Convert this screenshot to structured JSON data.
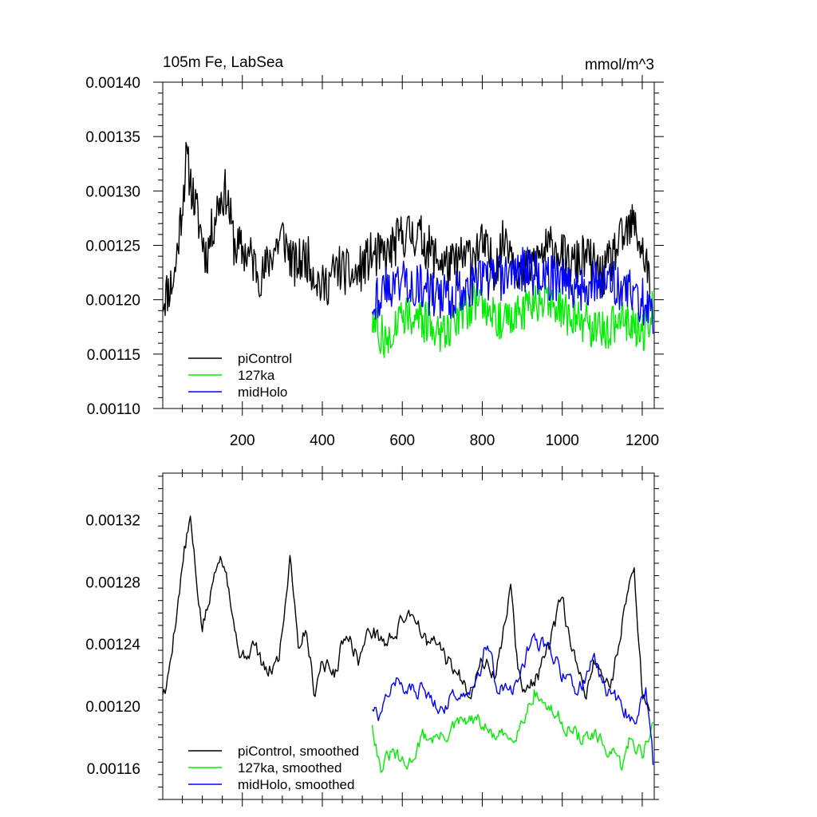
{
  "chart_data": [
    {
      "type": "line",
      "title": "105m Fe, LabSea",
      "units": "mmol/m^3",
      "xlim": [
        1,
        1230
      ],
      "ylim": [
        0.0011,
        0.0014
      ],
      "xticks": [
        200,
        400,
        600,
        800,
        1000,
        1200
      ],
      "xtick_labels": [
        "200",
        "400",
        "600",
        "800",
        "1000",
        "1200"
      ],
      "yticks": [
        0.0011,
        0.00115,
        0.0012,
        0.00125,
        0.0013,
        0.00135,
        0.0014
      ],
      "ytick_labels": [
        "0.00110",
        "0.00115",
        "0.00120",
        "0.00125",
        "0.00130",
        "0.00135",
        "0.00140"
      ],
      "legend": [
        "piControl",
        "127ka",
        "midHolo"
      ],
      "legend_position": "bottom-left",
      "series": [
        {
          "name": "piControl",
          "color": "#000000",
          "x_range": [
            1,
            1220
          ],
          "anchors": [
            [
              1,
              0.0012
            ],
            [
              30,
              0.00122
            ],
            [
              50,
              0.00129
            ],
            [
              60,
              0.00133
            ],
            [
              80,
              0.00129
            ],
            [
              110,
              0.00124
            ],
            [
              140,
              0.00129
            ],
            [
              160,
              0.0013
            ],
            [
              180,
              0.00125
            ],
            [
              220,
              0.00124
            ],
            [
              250,
              0.00122
            ],
            [
              270,
              0.00124
            ],
            [
              300,
              0.00126
            ],
            [
              330,
              0.00123
            ],
            [
              360,
              0.00124
            ],
            [
              400,
              0.00121
            ],
            [
              440,
              0.00123
            ],
            [
              480,
              0.00122
            ],
            [
              520,
              0.00124
            ],
            [
              560,
              0.00124
            ],
            [
              600,
              0.00126
            ],
            [
              640,
              0.00126
            ],
            [
              680,
              0.00124
            ],
            [
              720,
              0.00123
            ],
            [
              760,
              0.00124
            ],
            [
              800,
              0.00125
            ],
            [
              830,
              0.00123
            ],
            [
              860,
              0.00126
            ],
            [
              900,
              0.00122
            ],
            [
              940,
              0.00124
            ],
            [
              980,
              0.00125
            ],
            [
              1020,
              0.00123
            ],
            [
              1060,
              0.00124
            ],
            [
              1100,
              0.00122
            ],
            [
              1140,
              0.00125
            ],
            [
              1180,
              0.00127
            ],
            [
              1220,
              0.00122
            ]
          ],
          "noise": 2.2e-05,
          "seed": 11
        },
        {
          "name": "127ka",
          "color": "#00ee00",
          "x_range": [
            525,
            1228
          ],
          "anchors": [
            [
              525,
              0.00118
            ],
            [
              560,
              0.00116
            ],
            [
              600,
              0.00119
            ],
            [
              650,
              0.00118
            ],
            [
              700,
              0.00117
            ],
            [
              750,
              0.00119
            ],
            [
              800,
              0.0012
            ],
            [
              850,
              0.00118
            ],
            [
              900,
              0.00119
            ],
            [
              950,
              0.0012
            ],
            [
              1000,
              0.00119
            ],
            [
              1050,
              0.00118
            ],
            [
              1100,
              0.00117
            ],
            [
              1150,
              0.00118
            ],
            [
              1200,
              0.00117
            ],
            [
              1228,
              0.00119
            ]
          ],
          "noise": 2e-05,
          "seed": 27
        },
        {
          "name": "midHolo",
          "color": "#0000ff",
          "x_range": [
            525,
            1228
          ],
          "anchors": [
            [
              525,
              0.0012
            ],
            [
              560,
              0.00121
            ],
            [
              600,
              0.00122
            ],
            [
              650,
              0.00121
            ],
            [
              700,
              0.0012
            ],
            [
              750,
              0.00121
            ],
            [
              800,
              0.00122
            ],
            [
              850,
              0.00122
            ],
            [
              900,
              0.00123
            ],
            [
              950,
              0.00122
            ],
            [
              1000,
              0.00122
            ],
            [
              1050,
              0.00121
            ],
            [
              1100,
              0.00122
            ],
            [
              1150,
              0.00121
            ],
            [
              1200,
              0.0012
            ],
            [
              1228,
              0.00118
            ]
          ],
          "noise": 2.2e-05,
          "seed": 43
        }
      ]
    },
    {
      "type": "line",
      "xlim": [
        1,
        1230
      ],
      "ylim": [
        0.00114,
        0.00135
      ],
      "yticks": [
        0.00116,
        0.0012,
        0.00124,
        0.00128,
        0.00132
      ],
      "ytick_labels": [
        "0.00116",
        "0.00120",
        "0.00124",
        "0.00128",
        "0.00132"
      ],
      "legend": [
        "piControl, smoothed",
        "127ka, smoothed",
        "midHolo, smoothed"
      ],
      "legend_position": "bottom-left",
      "series": [
        {
          "name": "piControl, smoothed",
          "color": "#000000",
          "x_range": [
            1,
            1220
          ],
          "anchors": [
            [
              1,
              0.00121
            ],
            [
              10,
              0.00121
            ],
            [
              25,
              0.00124
            ],
            [
              40,
              0.00127
            ],
            [
              55,
              0.0013
            ],
            [
              70,
              0.00132
            ],
            [
              85,
              0.00128
            ],
            [
              100,
              0.00125
            ],
            [
              120,
              0.00127
            ],
            [
              140,
              0.0013
            ],
            [
              160,
              0.00129
            ],
            [
              180,
              0.00125
            ],
            [
              200,
              0.00123
            ],
            [
              230,
              0.00124
            ],
            [
              260,
              0.00122
            ],
            [
              290,
              0.00123
            ],
            [
              305,
              0.00126
            ],
            [
              320,
              0.0013
            ],
            [
              340,
              0.00124
            ],
            [
              360,
              0.00125
            ],
            [
              380,
              0.00121
            ],
            [
              400,
              0.00123
            ],
            [
              430,
              0.00122
            ],
            [
              460,
              0.00125
            ],
            [
              490,
              0.00123
            ],
            [
              520,
              0.00125
            ],
            [
              560,
              0.00124
            ],
            [
              590,
              0.00125
            ],
            [
              610,
              0.00126
            ],
            [
              630,
              0.00126
            ],
            [
              660,
              0.00124
            ],
            [
              690,
              0.00124
            ],
            [
              710,
              0.00123
            ],
            [
              740,
              0.00122
            ],
            [
              770,
              0.00121
            ],
            [
              800,
              0.00123
            ],
            [
              830,
              0.00122
            ],
            [
              850,
              0.00124
            ],
            [
              870,
              0.00128
            ],
            [
              890,
              0.00122
            ],
            [
              910,
              0.00121
            ],
            [
              940,
              0.00122
            ],
            [
              970,
              0.00124
            ],
            [
              1000,
              0.00127
            ],
            [
              1020,
              0.00124
            ],
            [
              1040,
              0.00122
            ],
            [
              1060,
              0.00121
            ],
            [
              1080,
              0.00123
            ],
            [
              1100,
              0.00122
            ],
            [
              1120,
              0.00121
            ],
            [
              1140,
              0.00124
            ],
            [
              1160,
              0.00127
            ],
            [
              1180,
              0.00129
            ],
            [
              1200,
              0.00121
            ],
            [
              1220,
              0.00119
            ]
          ],
          "noise": 7.5e-06,
          "seed": 5
        },
        {
          "name": "127ka, smoothed",
          "color": "#00ee00",
          "x_range": [
            525,
            1228
          ],
          "anchors": [
            [
              525,
              0.00119
            ],
            [
              545,
              0.00116
            ],
            [
              575,
              0.00117
            ],
            [
              610,
              0.00116
            ],
            [
              650,
              0.00118
            ],
            [
              700,
              0.00118
            ],
            [
              750,
              0.00119
            ],
            [
              790,
              0.00119
            ],
            [
              830,
              0.00118
            ],
            [
              870,
              0.00118
            ],
            [
              900,
              0.00119
            ],
            [
              930,
              0.00121
            ],
            [
              960,
              0.0012
            ],
            [
              1000,
              0.00119
            ],
            [
              1040,
              0.00118
            ],
            [
              1080,
              0.00118
            ],
            [
              1120,
              0.00117
            ],
            [
              1150,
              0.00116
            ],
            [
              1170,
              0.00118
            ],
            [
              1200,
              0.00117
            ],
            [
              1228,
              0.00119
            ]
          ],
          "noise": 7e-06,
          "seed": 31
        },
        {
          "name": "midHolo, smoothed",
          "color": "#0000ff",
          "x_range": [
            525,
            1228
          ],
          "anchors": [
            [
              525,
              0.0012
            ],
            [
              545,
              0.00119
            ],
            [
              575,
              0.00122
            ],
            [
              610,
              0.00121
            ],
            [
              650,
              0.00121
            ],
            [
              700,
              0.0012
            ],
            [
              750,
              0.00121
            ],
            [
              790,
              0.00122
            ],
            [
              810,
              0.00124
            ],
            [
              840,
              0.00121
            ],
            [
              880,
              0.00121
            ],
            [
              920,
              0.00124
            ],
            [
              960,
              0.00124
            ],
            [
              1000,
              0.00122
            ],
            [
              1040,
              0.00121
            ],
            [
              1080,
              0.00123
            ],
            [
              1110,
              0.00121
            ],
            [
              1150,
              0.0012
            ],
            [
              1180,
              0.00119
            ],
            [
              1210,
              0.00121
            ],
            [
              1228,
              0.00116
            ]
          ],
          "noise": 7.5e-06,
          "seed": 57
        }
      ]
    }
  ]
}
